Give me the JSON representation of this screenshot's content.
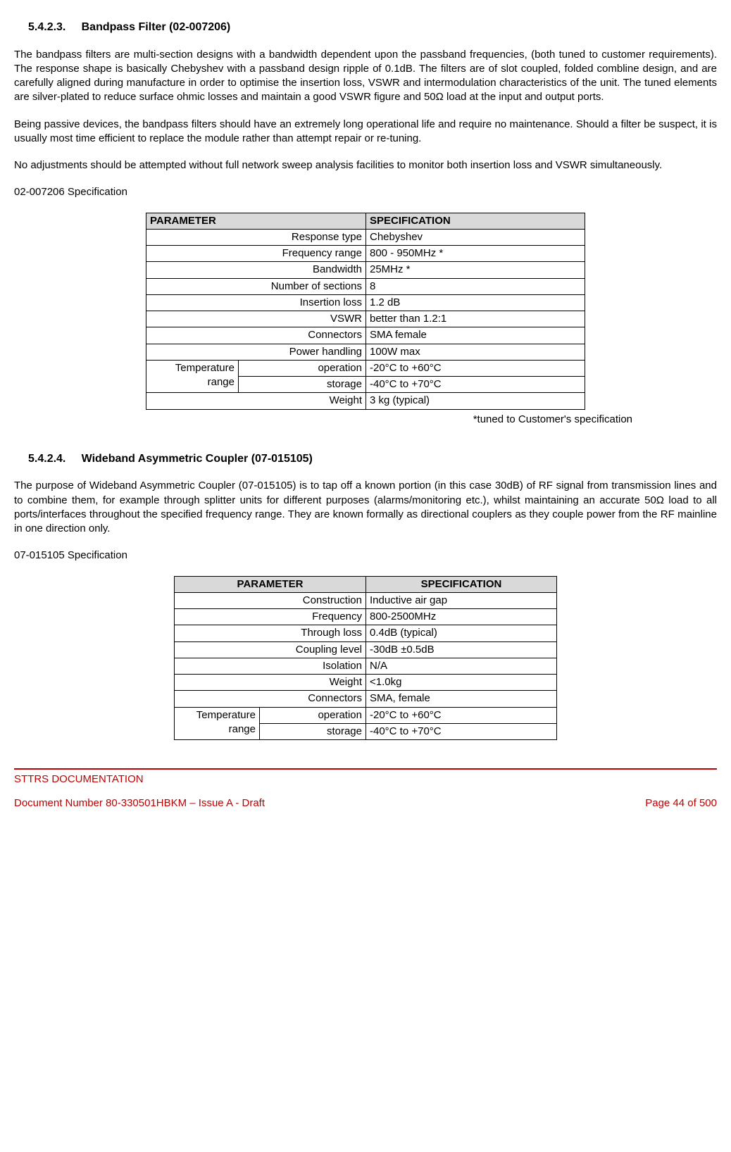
{
  "section1": {
    "number": "5.4.2.3.",
    "title": "Bandpass Filter (02-007206)",
    "para1": "The bandpass filters are multi-section designs with a bandwidth dependent upon the passband frequencies, (both tuned to customer requirements). The response shape is basically Chebyshev with a passband design ripple of 0.1dB. The filters are of slot coupled, folded combline design, and are carefully aligned during manufacture in order to optimise the insertion loss, VSWR and intermodulation characteristics of the unit. The tuned elements are silver-plated to reduce surface ohmic losses and maintain a good VSWR figure and 50Ω load at the input and output ports.",
    "para2": "Being passive devices, the bandpass filters should have an extremely long operational life and require no maintenance. Should a filter be suspect, it is usually most time efficient to replace the module rather than attempt repair or re-tuning.",
    "para3": "No adjustments should be attempted without full network sweep analysis facilities to monitor both insertion loss and VSWR simultaneously.",
    "spec_caption": "02-007206 Specification",
    "header_param": "PARAMETER",
    "header_spec": "SPECIFICATION",
    "rows": [
      {
        "param": "Response type",
        "spec": "Chebyshev"
      },
      {
        "param": "Frequency range",
        "spec": "800 - 950MHz *"
      },
      {
        "param": "Bandwidth",
        "spec": "25MHz *"
      },
      {
        "param": "Number of sections",
        "spec": "8"
      },
      {
        "param": "Insertion loss",
        "spec": "1.2 dB"
      },
      {
        "param": "VSWR",
        "spec": "better than 1.2:1"
      },
      {
        "param": "Connectors",
        "spec": "SMA female"
      },
      {
        "param": "Power handling",
        "spec": "100W max"
      }
    ],
    "temp_label": "Temperature range",
    "temp_op_label": "operation",
    "temp_op_spec": "-20°C to +60°C",
    "temp_st_label": "storage",
    "temp_st_spec": "-40°C to +70°C",
    "weight_label": "Weight",
    "weight_spec": "3 kg (typical)",
    "footnote": "*tuned to Customer's specification"
  },
  "section2": {
    "number": "5.4.2.4.",
    "title": "Wideband Asymmetric Coupler (07-015105)",
    "para1": "The purpose of Wideband Asymmetric Coupler (07-015105) is to tap off a known portion (in this case 30dB) of RF signal from transmission lines and to combine them, for example through splitter units for different purposes (alarms/monitoring etc.), whilst maintaining an accurate 50Ω load to all ports/interfaces throughout the specified frequency range. They are known formally as directional couplers as they couple power from the RF mainline in one direction only.",
    "spec_caption": "07-015105 Specification",
    "header_param": "PARAMETER",
    "header_spec": "SPECIFICATION",
    "rows": [
      {
        "param": "Construction",
        "spec": "Inductive air gap"
      },
      {
        "param": "Frequency",
        "spec": "800-2500MHz"
      },
      {
        "param": "Through loss",
        "spec": "0.4dB (typical)"
      },
      {
        "param": "Coupling level",
        "spec": "-30dB ±0.5dB"
      },
      {
        "param": "Isolation",
        "spec": "N/A"
      },
      {
        "param": "Weight",
        "spec": "<1.0kg"
      },
      {
        "param": "Connectors",
        "spec": "SMA, female"
      }
    ],
    "temp_label": "Temperature range",
    "temp_op_label": "operation",
    "temp_op_spec": "-20°C to +60°C",
    "temp_st_label": "storage",
    "temp_st_spec": "-40°C to +70°C"
  },
  "footer": {
    "title": "STTRS DOCUMENTATION",
    "doc": "Document Number 80-330501HBKM – Issue A - Draft",
    "page": "Page 44 of 500"
  }
}
